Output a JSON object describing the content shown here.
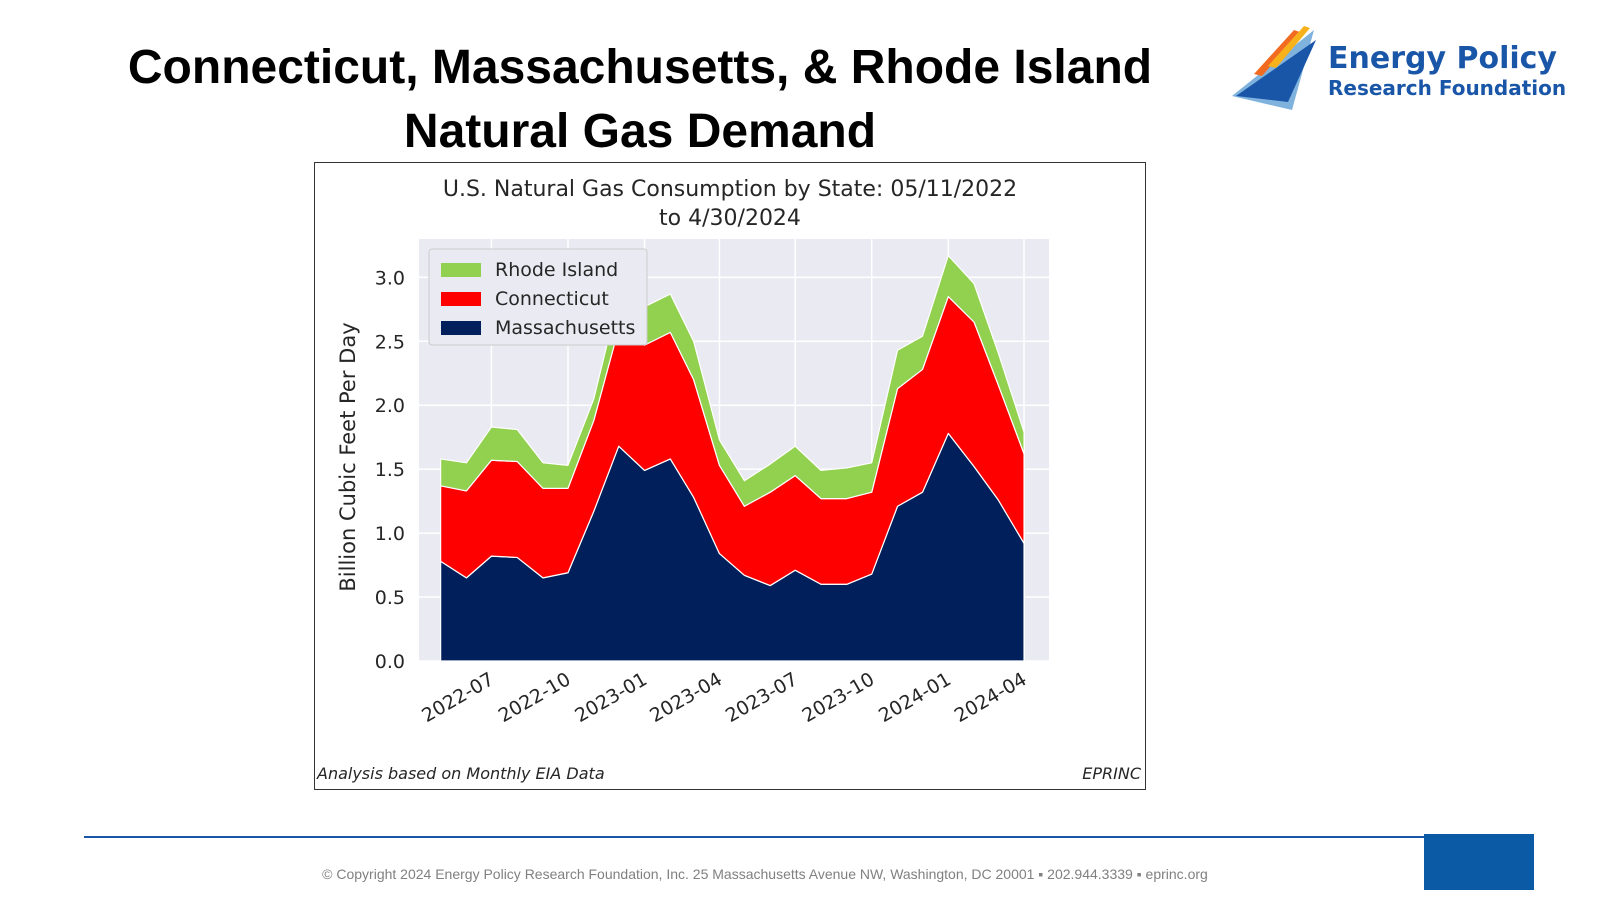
{
  "slide": {
    "title_line1": "Connecticut, Massachusetts, & Rhode Island",
    "title_line2": "Natural Gas Demand"
  },
  "logo": {
    "line1": "Energy Policy",
    "line2": "Research Foundation",
    "colors": {
      "blue": "#1a56a8",
      "light_blue": "#7fb3de",
      "orange": "#f26b21",
      "yellow": "#f7b21b"
    }
  },
  "footer": {
    "text": "© Copyright 2024 Energy Policy Research Foundation, Inc. 25 Massachusetts Avenue NW, Washington, DC 20001 ▪ 202.944.3339 ▪ eprinc.org"
  },
  "chart_data": {
    "type": "area",
    "stacked": true,
    "title_line1": "U.S. Natural Gas Consumption by State: 05/11/2022",
    "title_line2": "to 4/30/2024",
    "ylabel": "Billion Cubic Feet Per Day",
    "ylim": [
      0,
      3.3
    ],
    "yticks": [
      0.0,
      0.5,
      1.0,
      1.5,
      2.0,
      2.5,
      3.0
    ],
    "ytick_labels": [
      "0.0",
      "0.5",
      "1.0",
      "1.5",
      "2.0",
      "2.5",
      "3.0"
    ],
    "x": [
      "2022-05",
      "2022-06",
      "2022-07",
      "2022-08",
      "2022-09",
      "2022-10",
      "2022-11",
      "2022-12",
      "2023-01",
      "2023-02",
      "2023-03",
      "2023-04",
      "2023-05",
      "2023-06",
      "2023-07",
      "2023-08",
      "2023-09",
      "2023-10",
      "2023-11",
      "2023-12",
      "2024-01",
      "2024-02",
      "2024-03",
      "2024-04"
    ],
    "xticks": [
      "2022-07",
      "2022-10",
      "2023-01",
      "2023-04",
      "2023-07",
      "2023-10",
      "2024-01",
      "2024-04"
    ],
    "xlim": [
      "2022-04-05",
      "2024-05-01"
    ],
    "series": [
      {
        "name": "Massachusetts",
        "color": "#001f5b",
        "values": [
          0.78,
          0.65,
          0.82,
          0.81,
          0.65,
          0.69,
          1.17,
          1.68,
          1.49,
          1.58,
          1.28,
          0.84,
          0.67,
          0.59,
          0.71,
          0.6,
          0.6,
          0.68,
          1.21,
          1.32,
          1.78,
          1.52,
          1.26,
          0.92
        ]
      },
      {
        "name": "Connecticut",
        "color": "#ff0000",
        "values": [
          0.59,
          0.68,
          0.75,
          0.75,
          0.7,
          0.66,
          0.71,
          0.92,
          0.98,
          0.99,
          0.92,
          0.69,
          0.54,
          0.73,
          0.74,
          0.67,
          0.67,
          0.64,
          0.92,
          0.96,
          1.07,
          1.13,
          0.9,
          0.7
        ]
      },
      {
        "name": "Rhode Island",
        "color": "#92d050",
        "values": [
          0.21,
          0.22,
          0.26,
          0.25,
          0.2,
          0.18,
          0.17,
          0.25,
          0.3,
          0.3,
          0.3,
          0.2,
          0.2,
          0.22,
          0.23,
          0.22,
          0.24,
          0.23,
          0.3,
          0.26,
          0.32,
          0.3,
          0.25,
          0.17
        ]
      }
    ],
    "legend": {
      "placement": "upper-left",
      "entries": [
        "Rhode Island",
        "Connecticut",
        "Massachusetts"
      ]
    },
    "grid": true,
    "plot_background": "#eaeaf2",
    "annotation_left": "Analysis based on Monthly EIA Data",
    "annotation_right": "EPRINC"
  }
}
